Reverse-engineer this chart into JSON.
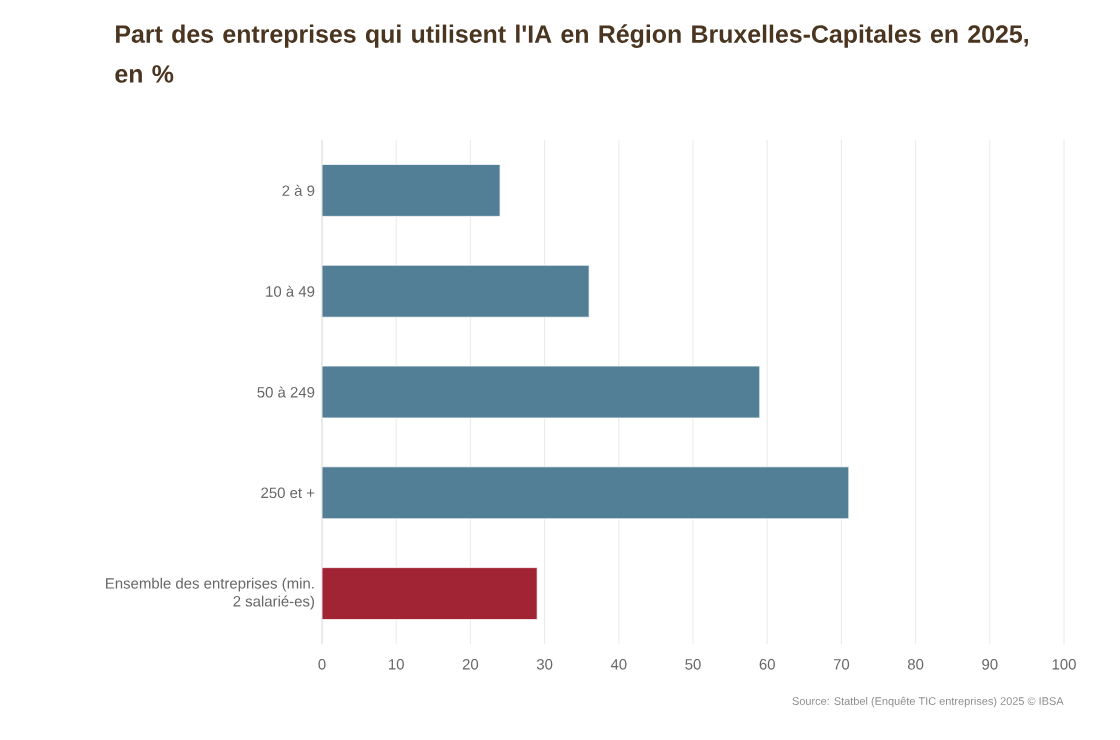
{
  "chart_data": {
    "type": "bar",
    "orientation": "horizontal",
    "title": "Part des entreprises qui utilisent l'IA en Région Bruxelles-Capitales en 2025, en %",
    "categories": [
      "2 à 9",
      "10 à 49",
      "50 à 249",
      "250 et +",
      "Ensemble des entreprises (min. 2 salarié-es)"
    ],
    "values": [
      24,
      36,
      59,
      71,
      29
    ],
    "colors": [
      "#527f96",
      "#527f96",
      "#527f96",
      "#527f96",
      "#a02433"
    ],
    "xlim": [
      0,
      100
    ],
    "xticks": [
      0,
      10,
      20,
      30,
      40,
      50,
      60,
      70,
      80,
      90,
      100
    ],
    "grid": "x",
    "annotations": [
      "Source: Statbel (Enquête TIC entreprises) 2025 © IBSA"
    ]
  }
}
